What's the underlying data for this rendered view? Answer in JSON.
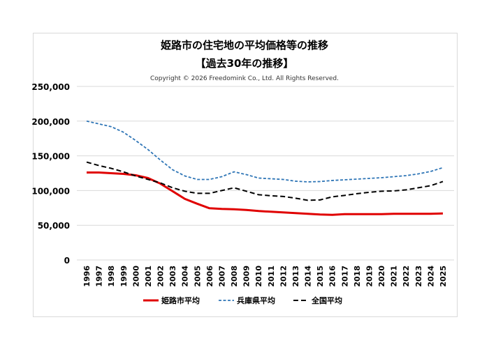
{
  "chart_data": {
    "type": "line",
    "title": "姫路市の住宅地の平均価格等の推移",
    "subtitle": "【過去30年の推移】",
    "copyright": "Copyright © 2026 Freedomink Co., Ltd. All Rights Reserved.",
    "x": [
      1996,
      1997,
      1998,
      1999,
      2000,
      2001,
      2002,
      2003,
      2004,
      2005,
      2006,
      2007,
      2008,
      2009,
      2010,
      2011,
      2012,
      2013,
      2014,
      2015,
      2016,
      2017,
      2018,
      2019,
      2020,
      2021,
      2022,
      2023,
      2024,
      2025
    ],
    "ylim": [
      0,
      250000
    ],
    "yticks": [
      "0",
      "50,000",
      "100,000",
      "150,000",
      "200,000",
      "250,000"
    ],
    "grid": true,
    "legend": "bottom",
    "series": [
      {
        "name": "姫路市平均",
        "color": "#e00000",
        "style": "solid",
        "values": [
          126000,
          126000,
          125000,
          124000,
          122000,
          118000,
          110000,
          99000,
          88000,
          81000,
          74500,
          73500,
          73000,
          72000,
          70500,
          69500,
          68500,
          67500,
          66500,
          65500,
          65000,
          66000,
          66000,
          66000,
          66000,
          66500,
          66500,
          66500,
          66500,
          67000
        ]
      },
      {
        "name": "兵庫県平均",
        "color": "#2e75b6",
        "style": "dotted",
        "values": [
          200000,
          196000,
          192000,
          184000,
          172000,
          159000,
          144000,
          130000,
          121000,
          116000,
          116000,
          120000,
          127000,
          123000,
          118000,
          117000,
          116000,
          113500,
          112500,
          113000,
          114500,
          115500,
          116500,
          117500,
          118500,
          120000,
          121500,
          124000,
          127500,
          133000
        ]
      },
      {
        "name": "全国平均",
        "color": "#000000",
        "style": "dashed",
        "values": [
          141000,
          136000,
          132000,
          127000,
          121000,
          116000,
          111000,
          104000,
          99000,
          96000,
          96000,
          100000,
          104000,
          99000,
          94000,
          92500,
          91500,
          89000,
          86000,
          86500,
          91000,
          93000,
          95500,
          97500,
          99000,
          99500,
          101000,
          104000,
          107000,
          113000
        ]
      }
    ]
  }
}
